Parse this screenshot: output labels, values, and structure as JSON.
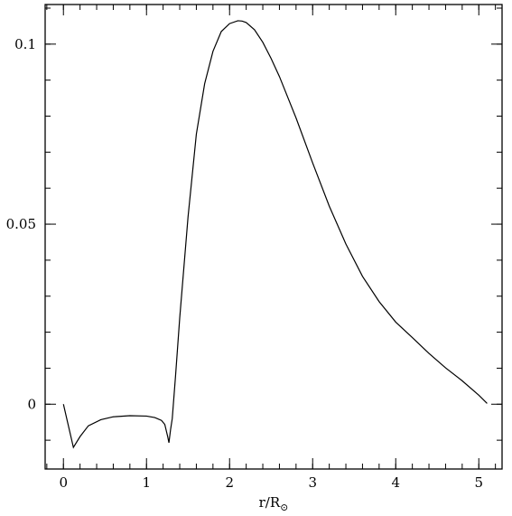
{
  "chart_data": {
    "type": "line",
    "title": "",
    "xlabel": "r/R",
    "xlabel_subscript": "⊙",
    "ylabel": "",
    "xlim": [
      -0.22,
      5.28
    ],
    "ylim": [
      -0.018,
      0.111
    ],
    "grid": false,
    "legend": "none",
    "x_ticks": [
      {
        "value": 0,
        "label": "0"
      },
      {
        "value": 1,
        "label": "1"
      },
      {
        "value": 2,
        "label": "2"
      },
      {
        "value": 3,
        "label": "3"
      },
      {
        "value": 4,
        "label": "4"
      },
      {
        "value": 5,
        "label": "5"
      }
    ],
    "x_minor_step": 0.2,
    "y_ticks": [
      {
        "value": 0,
        "label": "0"
      },
      {
        "value": 0.05,
        "label": "0.05"
      },
      {
        "value": 0.1,
        "label": "0.1"
      }
    ],
    "y_minor_step": 0.01,
    "series": [
      {
        "color": "#000000",
        "x": [
          0.0,
          0.05,
          0.12,
          0.2,
          0.3,
          0.45,
          0.6,
          0.8,
          1.0,
          1.1,
          1.18,
          1.22,
          1.255,
          1.27,
          1.29,
          1.31,
          1.35,
          1.4,
          1.5,
          1.6,
          1.7,
          1.8,
          1.9,
          2.0,
          2.1,
          2.15,
          2.2,
          2.3,
          2.4,
          2.5,
          2.6,
          2.8,
          3.0,
          3.2,
          3.4,
          3.6,
          3.8,
          4.0,
          4.2,
          4.4,
          4.6,
          4.8,
          5.0,
          5.1
        ],
        "y": [
          0.0,
          -0.005,
          -0.012,
          -0.009,
          -0.006,
          -0.0043,
          -0.0035,
          -0.0032,
          -0.0033,
          -0.0037,
          -0.0045,
          -0.0056,
          -0.009,
          -0.0107,
          -0.007,
          -0.004,
          0.008,
          0.024,
          0.052,
          0.075,
          0.089,
          0.098,
          0.1035,
          0.1057,
          0.1065,
          0.1064,
          0.106,
          0.104,
          0.1005,
          0.096,
          0.091,
          0.0795,
          0.067,
          0.055,
          0.0445,
          0.0355,
          0.0285,
          0.0228,
          0.0185,
          0.0141,
          0.0101,
          0.0065,
          0.0025,
          0.0002
        ]
      }
    ]
  }
}
